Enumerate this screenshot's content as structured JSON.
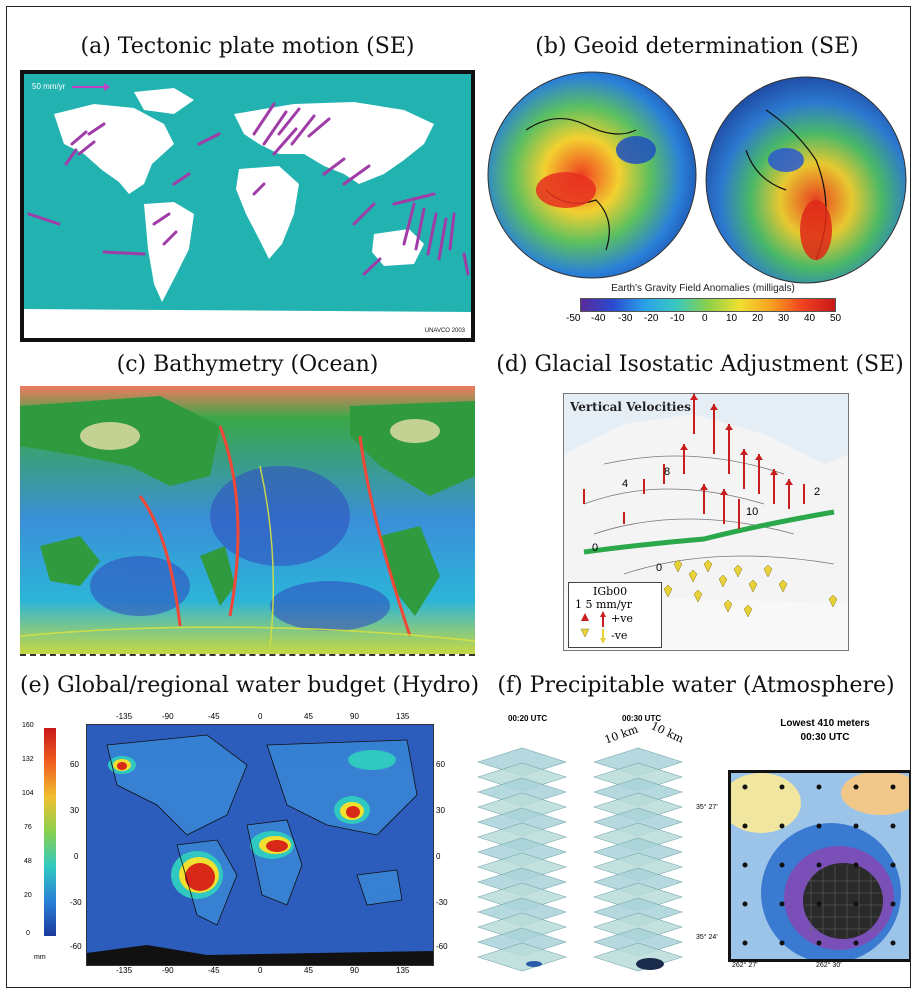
{
  "panels": {
    "a": {
      "caption": "(a) Tectonic plate motion (SE)",
      "scale_label": "50 mm/yr",
      "credit": "UNAVCO 2003"
    },
    "b": {
      "caption": "(b) Geoid determination (SE)",
      "colorbar_title": "Earth's Gravity Field Anomalies (milligals)",
      "colorbar_ticks": [
        "-50",
        "-40",
        "-30",
        "-20",
        "-10",
        "0",
        "10",
        "20",
        "30",
        "40",
        "50"
      ]
    },
    "c": {
      "caption": "(c) Bathymetry (Ocean)"
    },
    "d": {
      "caption": "(d) Glacial Isostatic Adjustment (SE)",
      "title": "Vertical Velocities",
      "contour_labels": [
        "4",
        "8",
        "10",
        "2",
        "0",
        "0"
      ],
      "legend": {
        "title": "IGb00",
        "scale": "1   5 mm/yr",
        "up": "+ve",
        "down": "-ve"
      }
    },
    "e": {
      "caption": "(e) Global/regional water budget (Hydro)",
      "colorbar_ticks": [
        "160",
        "132",
        "104",
        "76",
        "48",
        "20",
        "0"
      ],
      "colorbar_unit": "mm",
      "lon_ticks": [
        "-135",
        "-90",
        "-45",
        "0",
        "45",
        "90",
        "135"
      ],
      "lat_ticks": [
        "60",
        "30",
        "0",
        "-30",
        "-60"
      ]
    },
    "f": {
      "caption": "(f) Precipitable water (Atmosphere)",
      "stack1_label": "00:20 UTC",
      "stack2_label": "00:30 UTC",
      "stack2_dims": [
        "10 km",
        "10 km"
      ],
      "map_title_line1": "Lowest 410 meters",
      "map_title_line2": "00:30 UTC",
      "map_ylabels": [
        "35° 27'",
        "35° 24'"
      ],
      "map_xlabels": [
        "262° 27'",
        "262° 30'"
      ]
    }
  },
  "colors": {
    "ocean_a": "#22b2b0",
    "land_a": "#ffffff",
    "vector": "#a03ca8",
    "gia_up": "#c81e1e",
    "gia_down": "#e8d23a",
    "gia_hinge": "#2aa84a"
  }
}
